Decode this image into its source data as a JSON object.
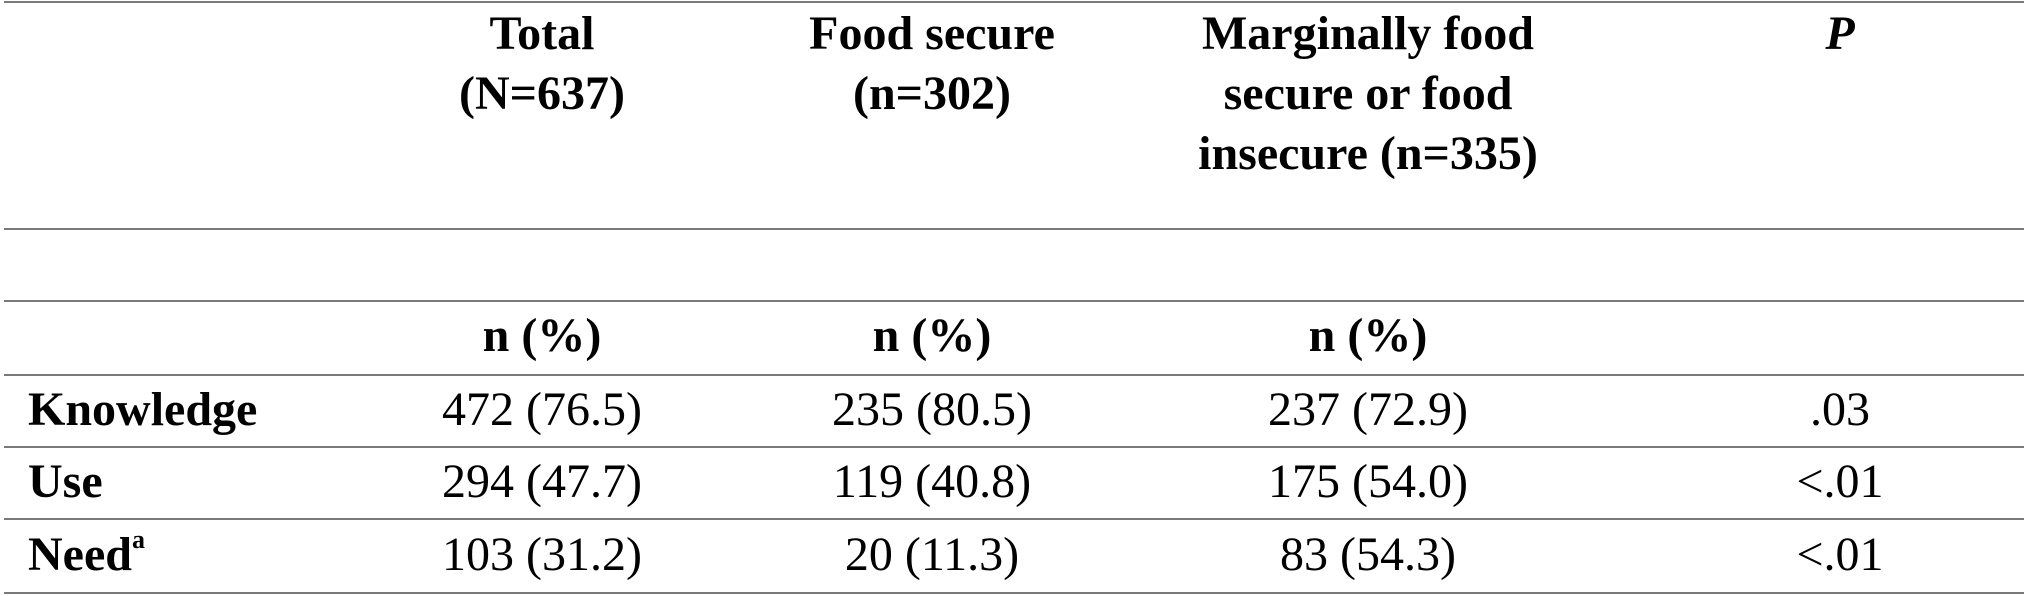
{
  "header": {
    "columns": [
      {
        "line1": "Total",
        "line2": "(N=637)",
        "line3": ""
      },
      {
        "line1": "Food secure",
        "line2": "(n=302)",
        "line3": ""
      },
      {
        "line1": "Marginally food",
        "line2": "secure or food",
        "line3": "insecure (n=335)"
      },
      {
        "line1": "P",
        "line2": "",
        "line3": ""
      }
    ],
    "units": [
      "n (%)",
      "n (%)",
      "n (%)",
      ""
    ]
  },
  "rows": [
    {
      "label": "Knowledge",
      "sup": "",
      "values": [
        "472 (76.5)",
        "235 (80.5)",
        "237 (72.9)",
        ".03"
      ]
    },
    {
      "label": "Use",
      "sup": "",
      "values": [
        "294 (47.7)",
        "119 (40.8)",
        "175 (54.0)",
        "<.01"
      ]
    },
    {
      "label": "Need",
      "sup": "a",
      "values": [
        "103 (31.2)",
        "20 (11.3)",
        "83 (54.3)",
        "<.01"
      ]
    }
  ]
}
